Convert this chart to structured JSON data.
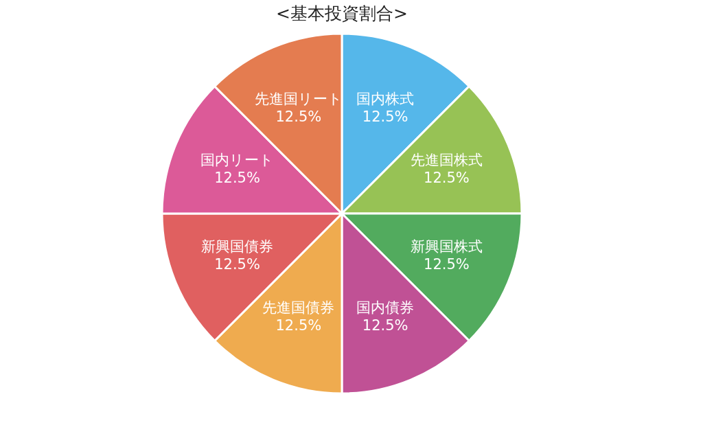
{
  "chart_data": {
    "type": "pie",
    "title": "<基本投資割合>",
    "categories": [
      "国内株式",
      "先進国株式",
      "新興国株式",
      "国内債券",
      "先進国債券",
      "新興国債券",
      "国内リート",
      "先進国リート"
    ],
    "values": [
      12.5,
      12.5,
      12.5,
      12.5,
      12.5,
      12.5,
      12.5,
      12.5
    ],
    "value_labels": [
      "12.5%",
      "12.5%",
      "12.5%",
      "12.5%",
      "12.5%",
      "12.5%",
      "12.5%",
      "12.5%"
    ],
    "colors": [
      "#55b7ea",
      "#97c255",
      "#52ab5e",
      "#c05195",
      "#efab4f",
      "#e06060",
      "#dc5a98",
      "#e47c50"
    ],
    "legend": false
  }
}
